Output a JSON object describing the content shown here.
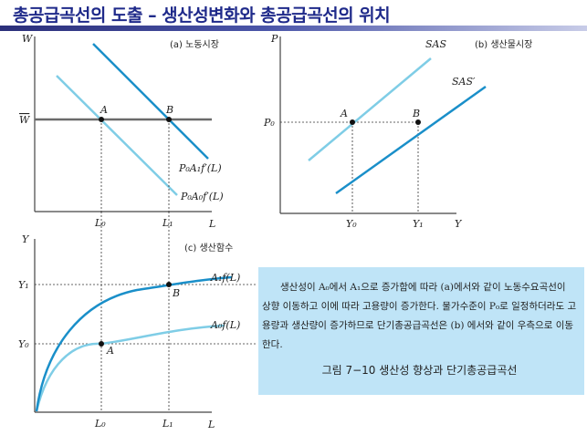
{
  "title": "총공급곡선의 도출 – 생산성변화와 총공급곡선의 위치",
  "colors": {
    "dark_line": "#1a8fc9",
    "light_line": "#7fcde6",
    "axis": "#444444",
    "title": "#1f2a8a",
    "caption_bg": "#bfe4f7"
  },
  "panel_a": {
    "title": "(a) 노동시장",
    "y_axis": "W",
    "x_axis": "L",
    "wage_label": "W",
    "point_a": "A",
    "point_b": "B",
    "curve_new": "P₀A₁f′(L)",
    "curve_old": "P₀A₀f′(L)",
    "x_tick_0": "L₀",
    "x_tick_1": "L₁"
  },
  "panel_b": {
    "title": "(b) 생산물시장",
    "y_axis": "P",
    "x_axis": "Y",
    "price_label": "P₀",
    "point_a": "A",
    "point_b": "B",
    "curve_old": "SAS",
    "curve_new": "SAS′",
    "x_tick_0": "Y₀",
    "x_tick_1": "Y₁"
  },
  "panel_c": {
    "title": "(c) 생산함수",
    "y_axis": "Y",
    "x_axis": "L",
    "y_tick_1": "Y₁",
    "y_tick_0": "Y₀",
    "point_a": "A",
    "point_b": "B",
    "curve_new": "A₁f(L)",
    "curve_old": "A₀f(L)",
    "x_tick_0": "L₀",
    "x_tick_1": "L₁"
  },
  "caption": {
    "body": "생산성이 A₀에서 A₁으로 증가함에 따라 (a)에서와 같이 노동수요곡선이 상향 이동하고 이에 따라 고용량이 증가한다. 물가수준이 P₀로 일정하더라도 고용량과 생산량이 증가하므로 단기총공급곡선은 (b) 에서와 같이 우측으로 이동한다.",
    "figure": "그림 7−10  생산성 향상과 단기총공급곡선"
  }
}
